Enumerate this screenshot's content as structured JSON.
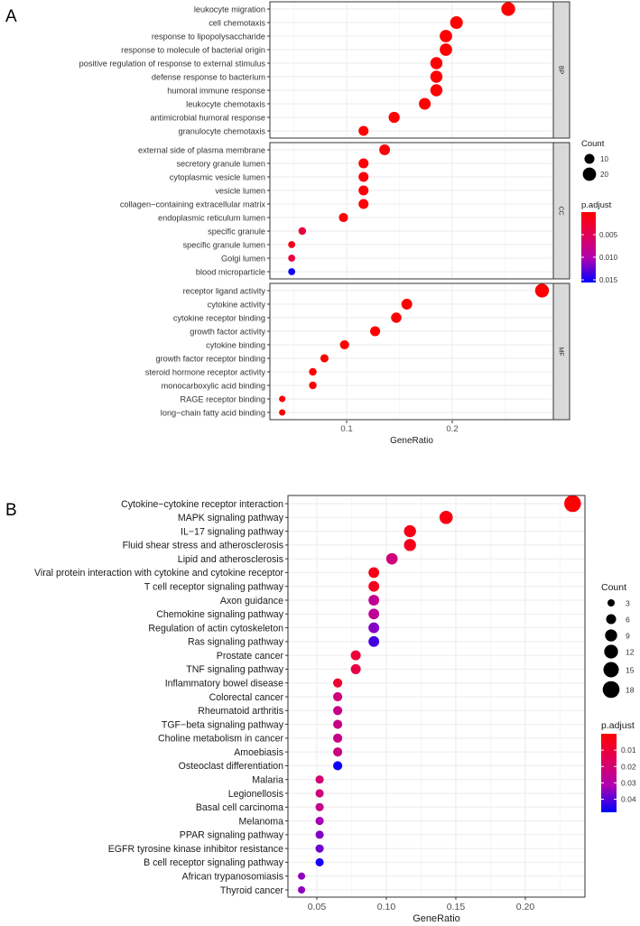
{
  "chart_data": [
    {
      "type": "scatter",
      "panel_label": "A",
      "xlabel": "GeneRatio",
      "x_ticks": [
        "0.1",
        "0.2"
      ],
      "x_tick_values": [
        0.1,
        0.2
      ],
      "xlim": [
        0.027,
        0.296
      ],
      "legend_count": {
        "title": "Count",
        "values": [
          10,
          20
        ]
      },
      "legend_color": {
        "title": "p.adjust",
        "ticks": [
          "0.005",
          "0.010",
          "0.015"
        ],
        "tick_values": [
          0.005,
          0.01,
          0.015
        ],
        "range": [
          0.0,
          0.0156
        ],
        "low_color": "#FF0000",
        "high_color": "#0000FF"
      },
      "facets": [
        {
          "name": "BP",
          "terms": [
            {
              "label": "leukocyte migration",
              "x": 0.253,
              "count": 22,
              "p": 0.0001
            },
            {
              "label": "cell chemotaxis",
              "x": 0.204,
              "count": 18,
              "p": 0.0001
            },
            {
              "label": "response to lipopolysaccharide",
              "x": 0.194,
              "count": 17,
              "p": 0.0001
            },
            {
              "label": "response to molecule of bacterial origin",
              "x": 0.194,
              "count": 17,
              "p": 0.0001
            },
            {
              "label": "positive regulation of response to external stimulus",
              "x": 0.185,
              "count": 16,
              "p": 0.0001
            },
            {
              "label": "defense response to bacterium",
              "x": 0.185,
              "count": 16,
              "p": 0.0001
            },
            {
              "label": "humoral immune response",
              "x": 0.185,
              "count": 16,
              "p": 0.0001
            },
            {
              "label": "leukocyte chemotaxis",
              "x": 0.174,
              "count": 15,
              "p": 0.0001
            },
            {
              "label": "antimicrobial humoral response",
              "x": 0.145,
              "count": 13,
              "p": 0.0001
            },
            {
              "label": "granulocyte chemotaxis",
              "x": 0.116,
              "count": 10,
              "p": 0.0001
            }
          ]
        },
        {
          "name": "CC",
          "terms": [
            {
              "label": "external side of plasma membrane",
              "x": 0.136,
              "count": 12,
              "p": 0.0005
            },
            {
              "label": "secretory granule lumen",
              "x": 0.116,
              "count": 10,
              "p": 0.0005
            },
            {
              "label": "cytoplasmic vesicle lumen",
              "x": 0.116,
              "count": 10,
              "p": 0.0005
            },
            {
              "label": "vesicle lumen",
              "x": 0.116,
              "count": 10,
              "p": 0.0005
            },
            {
              "label": "collagen−containing extracellular matrix",
              "x": 0.116,
              "count": 10,
              "p": 0.0005
            },
            {
              "label": "endoplasmic reticulum lumen",
              "x": 0.097,
              "count": 8,
              "p": 0.0005
            },
            {
              "label": "specific granule",
              "x": 0.058,
              "count": 5,
              "p": 0.0035
            },
            {
              "label": "specific granule lumen",
              "x": 0.048,
              "count": 4,
              "p": 0.0012
            },
            {
              "label": "Golgi lumen",
              "x": 0.048,
              "count": 4,
              "p": 0.0035
            },
            {
              "label": "blood microparticle",
              "x": 0.048,
              "count": 4,
              "p": 0.0152
            }
          ]
        },
        {
          "name": "MF",
          "terms": [
            {
              "label": "receptor ligand activity",
              "x": 0.285,
              "count": 22,
              "p": 0.0001
            },
            {
              "label": "cytokine activity",
              "x": 0.157,
              "count": 12,
              "p": 0.0001
            },
            {
              "label": "cytokine receptor binding",
              "x": 0.147,
              "count": 11,
              "p": 0.0001
            },
            {
              "label": "growth factor activity",
              "x": 0.127,
              "count": 10,
              "p": 0.0001
            },
            {
              "label": "cytokine binding",
              "x": 0.098,
              "count": 8,
              "p": 0.0001
            },
            {
              "label": "growth factor receptor binding",
              "x": 0.079,
              "count": 6,
              "p": 0.0001
            },
            {
              "label": "steroid hormone receptor activity",
              "x": 0.068,
              "count": 5,
              "p": 0.0001
            },
            {
              "label": "monocarboxylic acid binding",
              "x": 0.068,
              "count": 5,
              "p": 0.0001
            },
            {
              "label": "RAGE receptor binding",
              "x": 0.039,
              "count": 3,
              "p": 0.0001
            },
            {
              "label": "long−chain fatty acid binding",
              "x": 0.039,
              "count": 3,
              "p": 0.0001
            }
          ]
        }
      ]
    },
    {
      "type": "scatter",
      "panel_label": "B",
      "xlabel": "GeneRatio",
      "x_ticks": [
        "0.05",
        "0.10",
        "0.15",
        "0.20"
      ],
      "x_tick_values": [
        0.05,
        0.1,
        0.15,
        0.2
      ],
      "xlim": [
        0.029,
        0.243
      ],
      "legend_count": {
        "title": "Count",
        "values": [
          3,
          6,
          9,
          12,
          15,
          18
        ]
      },
      "legend_color": {
        "title": "p.adjust",
        "ticks": [
          "0.01",
          "0.02",
          "0.03",
          "0.04"
        ],
        "tick_values": [
          0.01,
          0.02,
          0.03,
          0.04
        ],
        "range": [
          0.0,
          0.048
        ],
        "low_color": "#FF0000",
        "high_color": "#0000FF"
      },
      "terms": [
        {
          "label": "Cytokine−cytokine receptor interaction",
          "x": 0.234,
          "count": 18,
          "p": 0.001
        },
        {
          "label": "MAPK signaling pathway",
          "x": 0.143,
          "count": 11,
          "p": 0.003
        },
        {
          "label": "IL−17 signaling pathway",
          "x": 0.117,
          "count": 9,
          "p": 0.004
        },
        {
          "label": "Fluid shear stress and atherosclerosis",
          "x": 0.117,
          "count": 9,
          "p": 0.005
        },
        {
          "label": "Lipid and atherosclerosis",
          "x": 0.104,
          "count": 8,
          "p": 0.022
        },
        {
          "label": "Viral protein interaction with cytokine and cytokine receptor",
          "x": 0.091,
          "count": 7,
          "p": 0.004
        },
        {
          "label": "T cell receptor signaling pathway",
          "x": 0.091,
          "count": 7,
          "p": 0.005
        },
        {
          "label": "Axon guidance",
          "x": 0.091,
          "count": 7,
          "p": 0.027
        },
        {
          "label": "Chemokine signaling pathway",
          "x": 0.091,
          "count": 7,
          "p": 0.027
        },
        {
          "label": "Regulation of actin cytoskeleton",
          "x": 0.091,
          "count": 7,
          "p": 0.036
        },
        {
          "label": "Ras signaling pathway",
          "x": 0.091,
          "count": 7,
          "p": 0.042
        },
        {
          "label": "Prostate cancer",
          "x": 0.078,
          "count": 6,
          "p": 0.01
        },
        {
          "label": "TNF signaling pathway",
          "x": 0.078,
          "count": 6,
          "p": 0.012
        },
        {
          "label": "Inflammatory bowel disease",
          "x": 0.065,
          "count": 5,
          "p": 0.008
        },
        {
          "label": "Colorectal cancer",
          "x": 0.065,
          "count": 5,
          "p": 0.022
        },
        {
          "label": "Rheumatoid arthritis",
          "x": 0.065,
          "count": 5,
          "p": 0.024
        },
        {
          "label": "TGF−beta signaling pathway",
          "x": 0.065,
          "count": 5,
          "p": 0.024
        },
        {
          "label": "Choline metabolism in cancer",
          "x": 0.065,
          "count": 5,
          "p": 0.024
        },
        {
          "label": "Amoebiasis",
          "x": 0.065,
          "count": 5,
          "p": 0.024
        },
        {
          "label": "Osteoclast differentiation",
          "x": 0.065,
          "count": 5,
          "p": 0.047
        },
        {
          "label": "Malaria",
          "x": 0.052,
          "count": 4,
          "p": 0.02
        },
        {
          "label": "Legionellosis",
          "x": 0.052,
          "count": 4,
          "p": 0.022
        },
        {
          "label": "Basal cell carcinoma",
          "x": 0.052,
          "count": 4,
          "p": 0.025
        },
        {
          "label": "Melanoma",
          "x": 0.052,
          "count": 4,
          "p": 0.033
        },
        {
          "label": "PPAR signaling pathway",
          "x": 0.052,
          "count": 4,
          "p": 0.036
        },
        {
          "label": "EGFR tyrosine kinase inhibitor resistance",
          "x": 0.052,
          "count": 4,
          "p": 0.038
        },
        {
          "label": "B cell receptor signaling pathway",
          "x": 0.052,
          "count": 4,
          "p": 0.046
        },
        {
          "label": "African trypanosomiasis",
          "x": 0.039,
          "count": 3,
          "p": 0.035
        },
        {
          "label": "Thyroid cancer",
          "x": 0.039,
          "count": 3,
          "p": 0.035
        }
      ]
    }
  ]
}
